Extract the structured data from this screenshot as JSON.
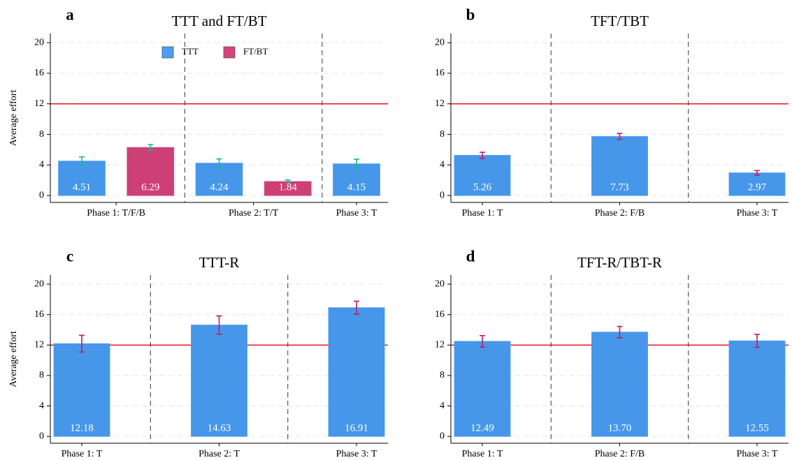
{
  "chart_data": [
    {
      "type": "bar",
      "panel_label": "a",
      "title": "TTT and FT/BT",
      "y_label": "Average effort",
      "categories": [
        "Phase 1: T/F/B",
        "Phase 2: T/T",
        "Phase 3: T"
      ],
      "series": [
        {
          "name": "TTT",
          "color": "#4a9ff5",
          "values": [
            4.51,
            4.24,
            4.15
          ],
          "errors": [
            0.55,
            0.55,
            0.6
          ]
        },
        {
          "name": "FT/BT",
          "color": "#d9437b",
          "values": [
            6.29,
            1.84,
            null
          ],
          "errors": [
            0.38,
            0.2,
            null
          ]
        }
      ],
      "error_color": "#19b98a",
      "legend": "top",
      "ylim": [
        -0.9,
        21.2
      ],
      "yticks": [
        0,
        4,
        8,
        12,
        16,
        20
      ],
      "grid": true,
      "reference_line": 12,
      "reference_color": "#e8141b"
    },
    {
      "type": "bar",
      "panel_label": "b",
      "title": "TFT/TBT",
      "categories": [
        "Phase 1: T",
        "Phase 2: F/B",
        "Phase 3: T"
      ],
      "values": [
        5.26,
        7.73,
        2.97
      ],
      "errors": [
        0.4,
        0.4,
        0.3
      ],
      "color": "#4a9ff5",
      "error_color": "#c7195e",
      "ylim": [
        -0.9,
        21.2
      ],
      "yticks": [
        0,
        4,
        8,
        12,
        16,
        20
      ],
      "grid": true,
      "reference_line": 12,
      "reference_color": "#e8141b"
    },
    {
      "type": "bar",
      "panel_label": "c",
      "title": "TTT-R",
      "y_label": "Average effort",
      "categories": [
        "Phase 1: T",
        "Phase 2: T",
        "Phase 3: T"
      ],
      "values": [
        12.18,
        14.63,
        16.91
      ],
      "errors": [
        1.1,
        1.2,
        0.85
      ],
      "color": "#4a9ff5",
      "error_color": "#c7195e",
      "ylim": [
        -0.9,
        21.2
      ],
      "yticks": [
        0,
        4,
        8,
        12,
        16,
        20
      ],
      "grid": true,
      "reference_line": 12,
      "reference_color": "#e8141b"
    },
    {
      "type": "bar",
      "panel_label": "d",
      "title": "TFT-R/TBT-R",
      "categories": [
        "Phase 1: T",
        "Phase 2: F/B",
        "Phase 3: T"
      ],
      "values": [
        12.49,
        13.7,
        12.55
      ],
      "value_labels": [
        "12.49",
        "13.70",
        "12.55"
      ],
      "errors": [
        0.75,
        0.75,
        0.85
      ],
      "color": "#4a9ff5",
      "error_color": "#c7195e",
      "ylim": [
        -0.9,
        21.2
      ],
      "yticks": [
        0,
        4,
        8,
        12,
        16,
        20
      ],
      "grid": true,
      "reference_line": 12,
      "reference_color": "#e8141b"
    }
  ]
}
